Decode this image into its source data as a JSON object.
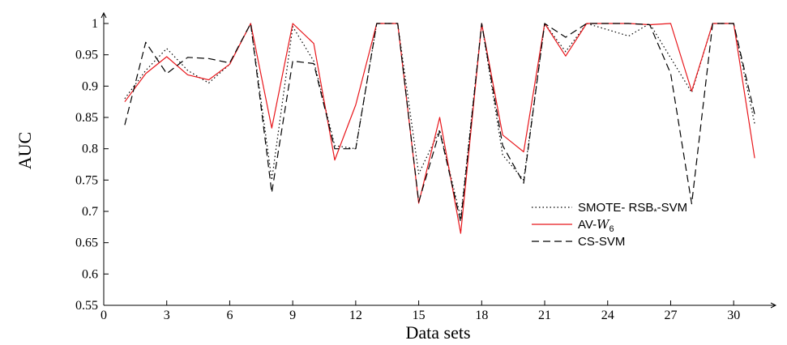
{
  "chart_data": {
    "type": "line",
    "xlabel": "Data sets",
    "ylabel": "AUC",
    "xlim": [
      0,
      32
    ],
    "ylim": [
      0.55,
      1.0
    ],
    "xticks": [
      0,
      3,
      6,
      9,
      12,
      15,
      18,
      21,
      24,
      27,
      30
    ],
    "yticks": [
      0.55,
      0.6,
      0.65,
      0.7,
      0.75,
      0.8,
      0.85,
      0.9,
      0.95,
      1
    ],
    "ytick_labels": [
      "0.55",
      "0.6",
      "0.65",
      "0.7",
      "0.75",
      "0.8",
      "0.85",
      "0.9",
      "0.95",
      "1"
    ],
    "grid": false,
    "legend_position": "right",
    "x": [
      1,
      2,
      3,
      4,
      5,
      6,
      7,
      8,
      9,
      10,
      11,
      12,
      13,
      14,
      15,
      16,
      17,
      18,
      19,
      20,
      21,
      22,
      23,
      24,
      25,
      26,
      27,
      28,
      29,
      30,
      31
    ],
    "series": [
      {
        "name": "SMOTE- RSB*-SVM",
        "legend_main": "SMOTE- RSB",
        "legend_sub": "*",
        "legend_tail": "-SVM",
        "color": "#000000",
        "dash": "1.5,3",
        "values": [
          0.88,
          0.925,
          0.96,
          0.925,
          0.905,
          0.935,
          1.0,
          0.75,
          0.995,
          0.94,
          0.805,
          0.8,
          1.0,
          1.0,
          0.76,
          0.83,
          0.69,
          1.0,
          0.79,
          0.75,
          1.0,
          0.955,
          1.0,
          0.99,
          0.98,
          1.0,
          0.945,
          0.89,
          1.0,
          1.0,
          0.84
        ]
      },
      {
        "name": "AV-W6",
        "legend_main": "AV-",
        "legend_script": "W",
        "legend_sub": "6",
        "color": "#e8161b",
        "dash": "",
        "values": [
          0.875,
          0.92,
          0.947,
          0.918,
          0.91,
          0.935,
          1.0,
          0.833,
          1.0,
          0.968,
          0.782,
          0.87,
          1.0,
          1.0,
          0.713,
          0.85,
          0.665,
          1.0,
          0.822,
          0.795,
          1.0,
          0.948,
          1.0,
          1.0,
          1.0,
          0.998,
          1.0,
          0.892,
          1.0,
          1.0,
          0.785
        ]
      },
      {
        "name": "CS-SVM",
        "legend_main": "CS-SVM",
        "color": "#000000",
        "dash": "9,5",
        "values": [
          0.838,
          0.97,
          0.92,
          0.946,
          0.944,
          0.937,
          1.0,
          0.73,
          0.94,
          0.936,
          0.8,
          0.8,
          1.0,
          1.0,
          0.715,
          0.828,
          0.683,
          1.0,
          0.805,
          0.745,
          1.0,
          0.978,
          1.0,
          1.0,
          1.0,
          0.998,
          0.92,
          0.712,
          1.0,
          1.0,
          0.855
        ]
      }
    ]
  }
}
